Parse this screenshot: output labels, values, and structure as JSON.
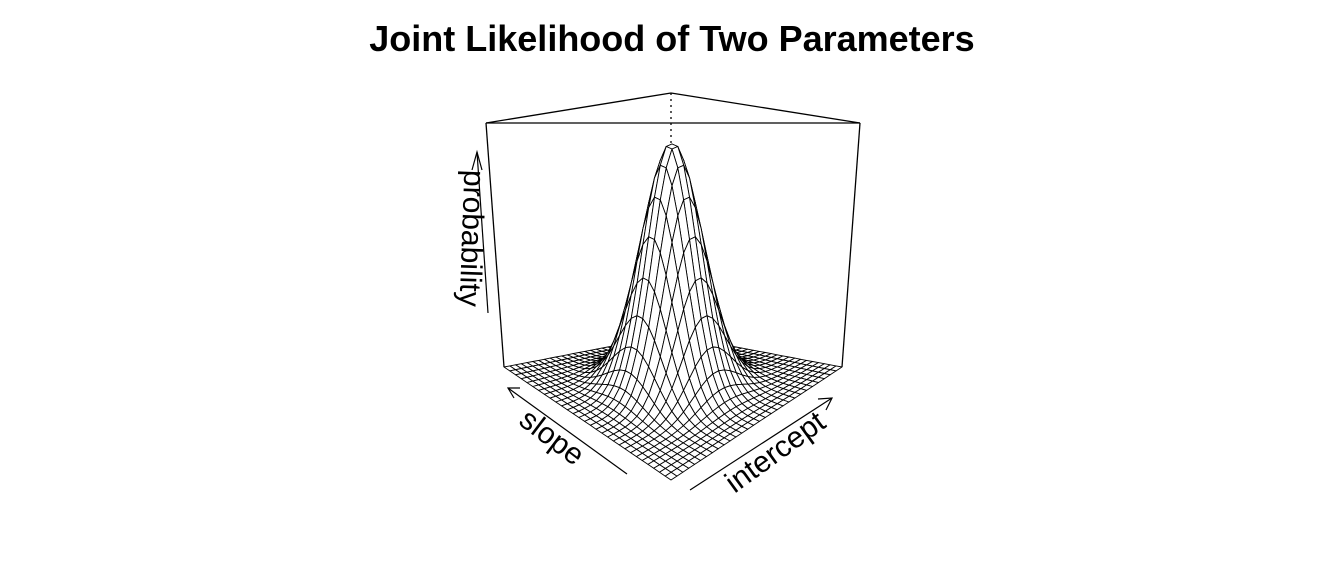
{
  "chart_data": {
    "type": "surface",
    "title": "Joint Likelihood of Two Parameters",
    "xlabel": "intercept",
    "ylabel": "slope",
    "zlabel": "probability",
    "grid_size": 30,
    "peak": {
      "intercept": 0.5,
      "slope": 0.5,
      "probability": 1.0
    },
    "surface": "bivariate-normal-like likelihood surface with a single mode near the center of the parameter grid, falling to near zero at the edges",
    "colors": {
      "line": "#000000",
      "background": "#ffffff"
    }
  }
}
